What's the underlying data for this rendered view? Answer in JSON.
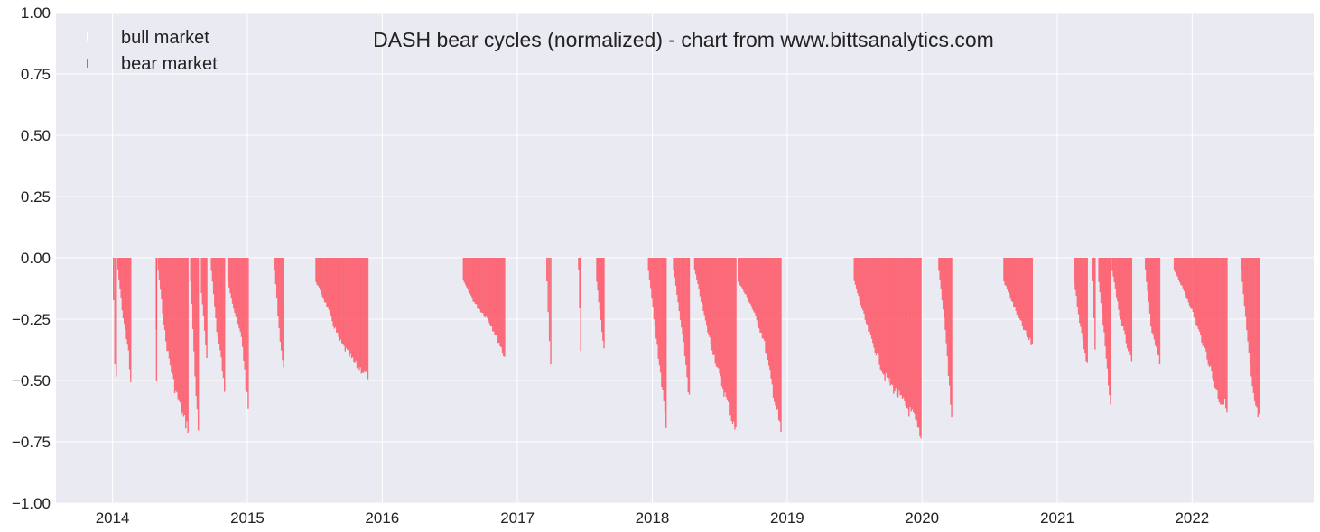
{
  "colors": {
    "plot_background": "#eaeaf2",
    "grid": "#ffffff",
    "bear": "#ff4d5e",
    "bull": "#ffffff"
  },
  "chart_data": {
    "type": "bar",
    "title": "DASH bear cycles (normalized)  - chart from www.bittsanalytics.com",
    "xlabel": "",
    "ylabel": "",
    "ylim": [
      -1.0,
      1.0
    ],
    "xlim": [
      "2013-08-01",
      "2022-11-26"
    ],
    "y_ticks": [
      "1.00",
      "0.75",
      "0.50",
      "0.25",
      "0.00",
      "−0.25",
      "−0.50",
      "−0.75",
      "−1.00"
    ],
    "x_ticks": [
      "2014",
      "2015",
      "2016",
      "2017",
      "2018",
      "2019",
      "2020",
      "2021",
      "2022"
    ],
    "grid": true,
    "legend_position": "top-left",
    "series": [
      {
        "name": "bull market",
        "type": "bar",
        "color": "#ffffff",
        "note_values": "small positive bars during bull periods, nearly invisible against background"
      },
      {
        "name": "bear market",
        "type": "bar",
        "color": "#ff4d5e",
        "segments": [
          {
            "start": "2014-01-02",
            "end": "2014-01-12",
            "depth": [
              [
                0,
                -0.18
              ],
              [
                0.5,
                -0.45
              ],
              [
                1,
                -0.52
              ]
            ]
          },
          {
            "start": "2014-01-14",
            "end": "2014-02-20",
            "depth": [
              [
                0,
                -0.05
              ],
              [
                0.4,
                -0.25
              ],
              [
                0.8,
                -0.38
              ],
              [
                1,
                -0.54
              ]
            ]
          },
          {
            "start": "2014-04-28",
            "end": "2014-04-30",
            "depth": [
              [
                0,
                -0.3
              ],
              [
                1,
                -0.54
              ]
            ]
          },
          {
            "start": "2014-05-03",
            "end": "2014-07-25",
            "depth": [
              [
                0,
                -0.05
              ],
              [
                0.25,
                -0.35
              ],
              [
                0.55,
                -0.55
              ],
              [
                0.85,
                -0.68
              ],
              [
                1,
                -0.72
              ]
            ]
          },
          {
            "start": "2014-07-30",
            "end": "2014-08-22",
            "depth": [
              [
                0,
                -0.1
              ],
              [
                0.5,
                -0.45
              ],
              [
                1,
                -0.75
              ]
            ]
          },
          {
            "start": "2014-08-28",
            "end": "2014-09-14",
            "depth": [
              [
                0,
                -0.15
              ],
              [
                1,
                -0.42
              ]
            ]
          },
          {
            "start": "2014-09-24",
            "end": "2014-11-01",
            "depth": [
              [
                0,
                -0.05
              ],
              [
                0.4,
                -0.3
              ],
              [
                0.8,
                -0.45
              ],
              [
                1,
                -0.58
              ]
            ]
          },
          {
            "start": "2014-11-08",
            "end": "2015-01-04",
            "depth": [
              [
                0,
                -0.1
              ],
              [
                0.3,
                -0.22
              ],
              [
                0.7,
                -0.35
              ],
              [
                1,
                -0.65
              ]
            ]
          },
          {
            "start": "2015-03-14",
            "end": "2015-04-10",
            "depth": [
              [
                0,
                -0.05
              ],
              [
                0.5,
                -0.3
              ],
              [
                1,
                -0.48
              ]
            ]
          },
          {
            "start": "2015-07-04",
            "end": "2015-11-24",
            "depth": [
              [
                0,
                -0.1
              ],
              [
                0.2,
                -0.2
              ],
              [
                0.45,
                -0.35
              ],
              [
                0.75,
                -0.45
              ],
              [
                1,
                -0.5
              ]
            ]
          },
          {
            "start": "2016-08-06",
            "end": "2016-11-28",
            "depth": [
              [
                0,
                -0.1
              ],
              [
                0.3,
                -0.2
              ],
              [
                0.6,
                -0.26
              ],
              [
                0.85,
                -0.35
              ],
              [
                1,
                -0.42
              ]
            ]
          },
          {
            "start": "2017-03-20",
            "end": "2017-04-02",
            "depth": [
              [
                0,
                -0.1
              ],
              [
                1,
                -0.47
              ]
            ]
          },
          {
            "start": "2017-06-14",
            "end": "2017-06-22",
            "depth": [
              [
                0,
                -0.05
              ],
              [
                1,
                -0.38
              ]
            ]
          },
          {
            "start": "2017-08-02",
            "end": "2017-08-24",
            "depth": [
              [
                0,
                -0.1
              ],
              [
                0.5,
                -0.25
              ],
              [
                1,
                -0.4
              ]
            ]
          },
          {
            "start": "2017-12-20",
            "end": "2018-02-08",
            "depth": [
              [
                0,
                -0.05
              ],
              [
                0.3,
                -0.25
              ],
              [
                0.7,
                -0.5
              ],
              [
                1,
                -0.7
              ]
            ]
          },
          {
            "start": "2018-02-26",
            "end": "2018-04-12",
            "depth": [
              [
                0,
                -0.05
              ],
              [
                0.3,
                -0.2
              ],
              [
                0.7,
                -0.4
              ],
              [
                1,
                -0.6
              ]
            ]
          },
          {
            "start": "2018-04-24",
            "end": "2018-08-16",
            "depth": [
              [
                0,
                -0.05
              ],
              [
                0.3,
                -0.3
              ],
              [
                0.6,
                -0.5
              ],
              [
                0.85,
                -0.65
              ],
              [
                1,
                -0.74
              ]
            ]
          },
          {
            "start": "2018-08-20",
            "end": "2018-12-16",
            "depth": [
              [
                0,
                -0.1
              ],
              [
                0.3,
                -0.2
              ],
              [
                0.6,
                -0.35
              ],
              [
                0.85,
                -0.6
              ],
              [
                1,
                -0.74
              ]
            ]
          },
          {
            "start": "2019-06-30",
            "end": "2019-12-30",
            "depth": [
              [
                0,
                -0.1
              ],
              [
                0.2,
                -0.3
              ],
              [
                0.45,
                -0.5
              ],
              [
                0.7,
                -0.6
              ],
              [
                0.9,
                -0.68
              ],
              [
                1,
                -0.78
              ]
            ]
          },
          {
            "start": "2020-02-14",
            "end": "2020-03-22",
            "depth": [
              [
                0,
                -0.05
              ],
              [
                0.5,
                -0.3
              ],
              [
                1,
                -0.68
              ]
            ]
          },
          {
            "start": "2020-08-08",
            "end": "2020-10-26",
            "depth": [
              [
                0,
                -0.1
              ],
              [
                0.4,
                -0.22
              ],
              [
                0.8,
                -0.33
              ],
              [
                1,
                -0.37
              ]
            ]
          },
          {
            "start": "2021-02-14",
            "end": "2021-03-24",
            "depth": [
              [
                0,
                -0.1
              ],
              [
                0.5,
                -0.3
              ],
              [
                1,
                -0.45
              ]
            ]
          },
          {
            "start": "2021-04-06",
            "end": "2021-04-14",
            "depth": [
              [
                0,
                -0.1
              ],
              [
                1,
                -0.4
              ]
            ]
          },
          {
            "start": "2021-04-22",
            "end": "2021-05-26",
            "depth": [
              [
                0,
                -0.1
              ],
              [
                0.5,
                -0.35
              ],
              [
                1,
                -0.65
              ]
            ]
          },
          {
            "start": "2021-05-28",
            "end": "2021-07-22",
            "depth": [
              [
                0,
                -0.05
              ],
              [
                0.4,
                -0.25
              ],
              [
                0.8,
                -0.38
              ],
              [
                1,
                -0.45
              ]
            ]
          },
          {
            "start": "2021-08-26",
            "end": "2021-10-06",
            "depth": [
              [
                0,
                -0.05
              ],
              [
                0.4,
                -0.3
              ],
              [
                1,
                -0.45
              ]
            ]
          },
          {
            "start": "2021-11-12",
            "end": "2022-04-06",
            "depth": [
              [
                0,
                -0.05
              ],
              [
                0.3,
                -0.2
              ],
              [
                0.6,
                -0.4
              ],
              [
                0.85,
                -0.6
              ],
              [
                1,
                -0.63
              ]
            ]
          },
          {
            "start": "2022-05-12",
            "end": "2022-07-02",
            "depth": [
              [
                0,
                -0.05
              ],
              [
                0.3,
                -0.3
              ],
              [
                0.6,
                -0.55
              ],
              [
                0.85,
                -0.65
              ],
              [
                1,
                -0.68
              ]
            ]
          }
        ]
      }
    ]
  }
}
